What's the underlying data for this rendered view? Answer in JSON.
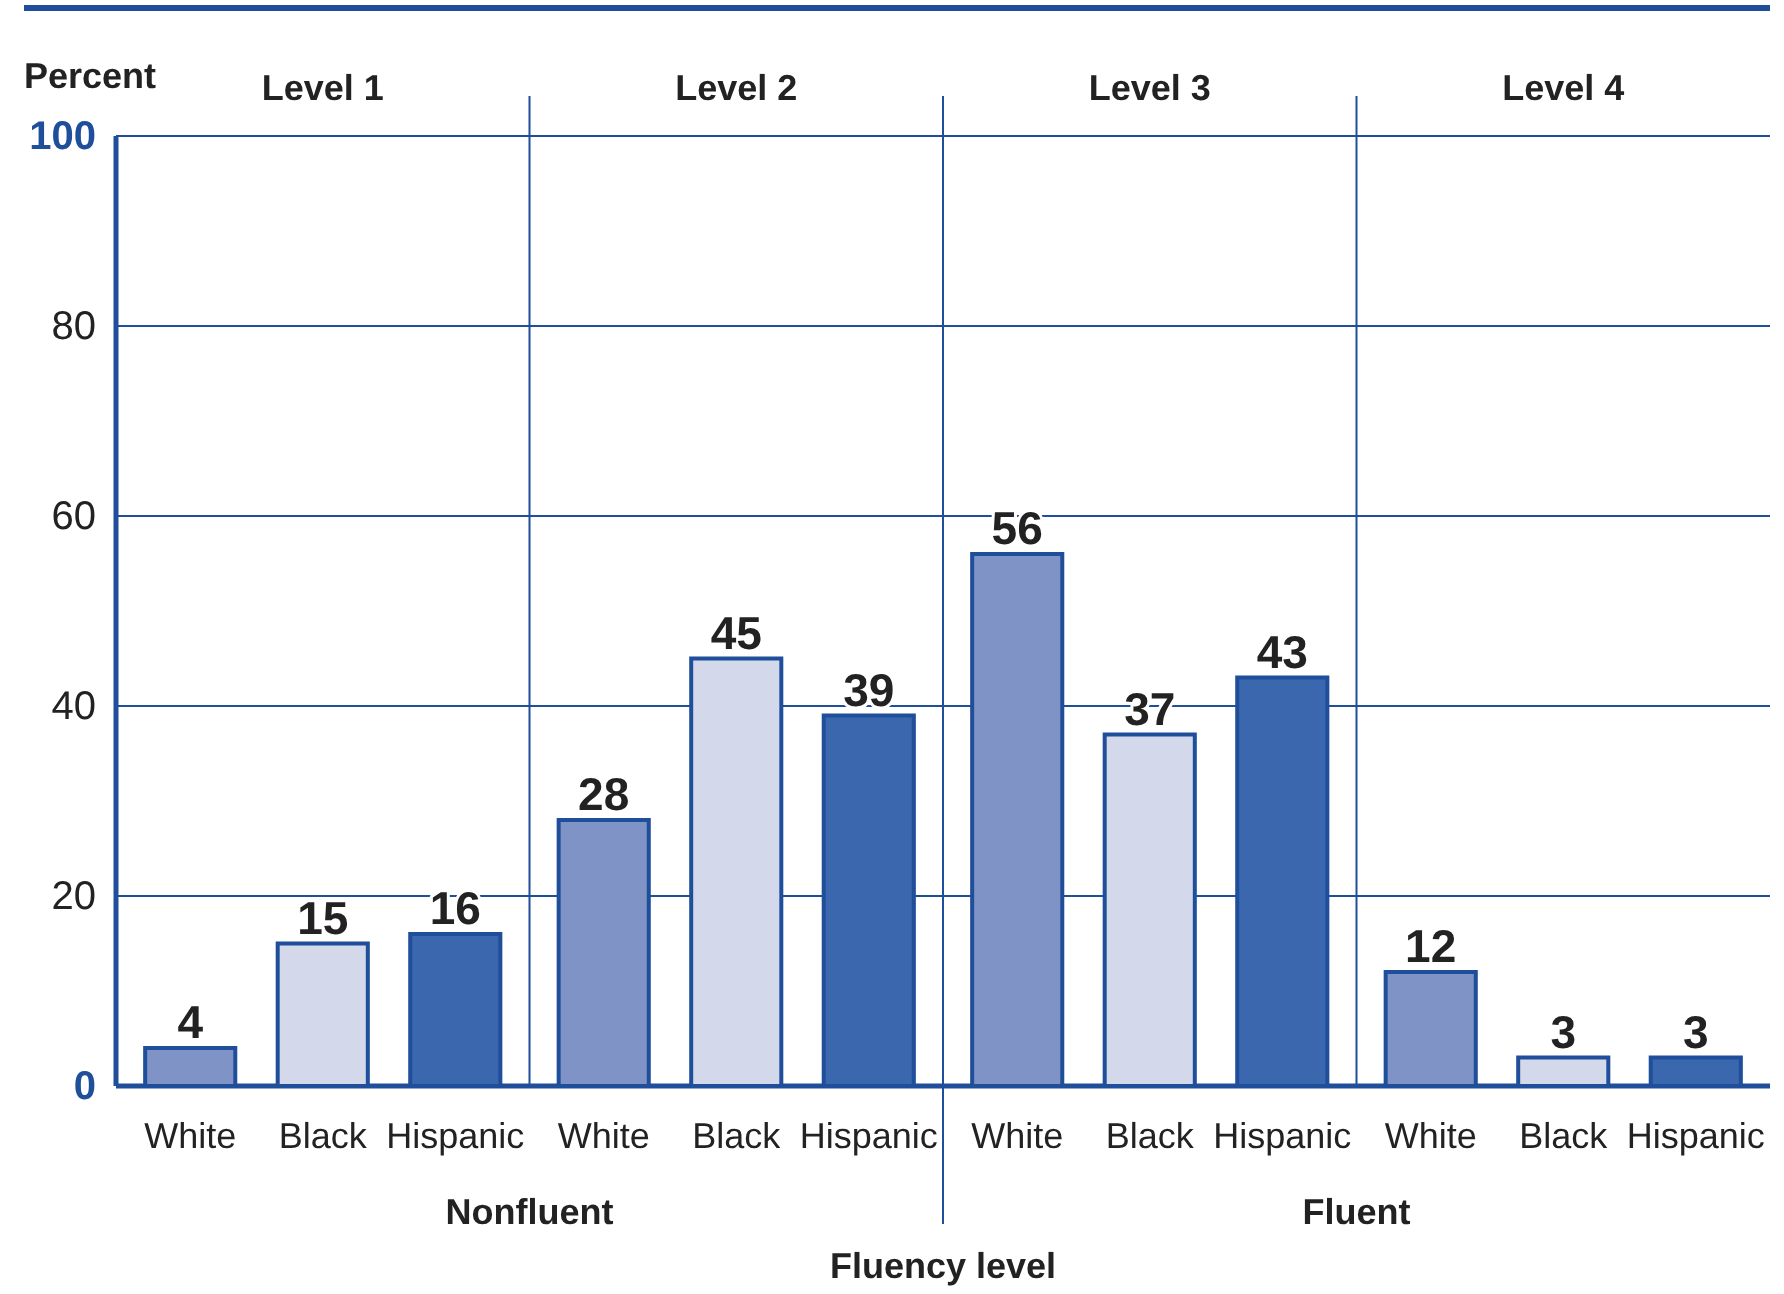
{
  "chart_data": {
    "type": "bar",
    "ylabel": "Percent",
    "xlabel": "Fluency level",
    "categories": [
      "White",
      "Black",
      "Hispanic",
      "White",
      "Black",
      "Hispanic",
      "White",
      "Black",
      "Hispanic",
      "White",
      "Black",
      "Hispanic"
    ],
    "values": [
      4,
      15,
      16,
      28,
      45,
      39,
      56,
      37,
      43,
      12,
      3,
      3
    ],
    "colors": [
      "#7f93c6",
      "#d3d8ea",
      "#3b67ae",
      "#7f93c6",
      "#d3d8ea",
      "#3b67ae",
      "#7f93c6",
      "#d3d8ea",
      "#3b67ae",
      "#7f93c6",
      "#d3d8ea",
      "#3b67ae"
    ],
    "ylim": [
      0,
      100
    ],
    "yticks": [
      0,
      20,
      40,
      60,
      80,
      100
    ],
    "grid": "y",
    "data_labels": true,
    "annotations": [
      "Level 1",
      "Level 2",
      "Level 3",
      "Level 4",
      "Nonfluent",
      "Fluent"
    ]
  }
}
